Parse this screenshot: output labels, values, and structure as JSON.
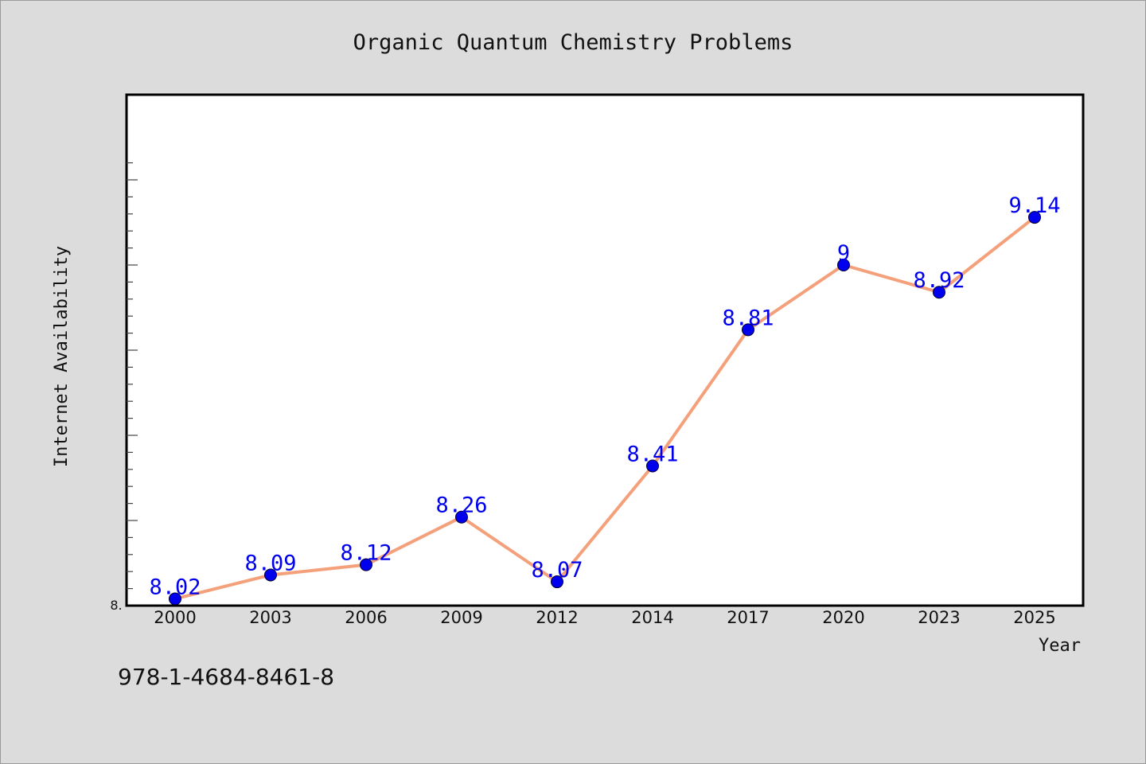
{
  "chart_data": {
    "type": "line",
    "title": "Organic Quantum Chemistry Problems",
    "xlabel": "Year",
    "ylabel": "Internet Availability",
    "categories": [
      "2000",
      "2003",
      "2006",
      "2009",
      "2012",
      "2014",
      "2017",
      "2020",
      "2023",
      "2025"
    ],
    "series": [
      {
        "values": [
          8.02,
          8.09,
          8.12,
          8.26,
          8.07,
          8.41,
          8.81,
          9.0,
          8.92,
          9.14
        ],
        "data_labels": [
          "8.02",
          "8.09",
          "8.12",
          "8.26",
          "8.07",
          "8.41",
          "8.81",
          "9",
          "8.92",
          "9.14"
        ],
        "line_color": "#f4a07a",
        "marker_color": "#0000ee",
        "label_color": "#0000ee"
      }
    ],
    "ylim": [
      8.0,
      9.5
    ],
    "y_tick_label": "8.",
    "grid": false,
    "legend": "none"
  },
  "footer": {
    "isbn": "978-1-4684-8461-8"
  }
}
